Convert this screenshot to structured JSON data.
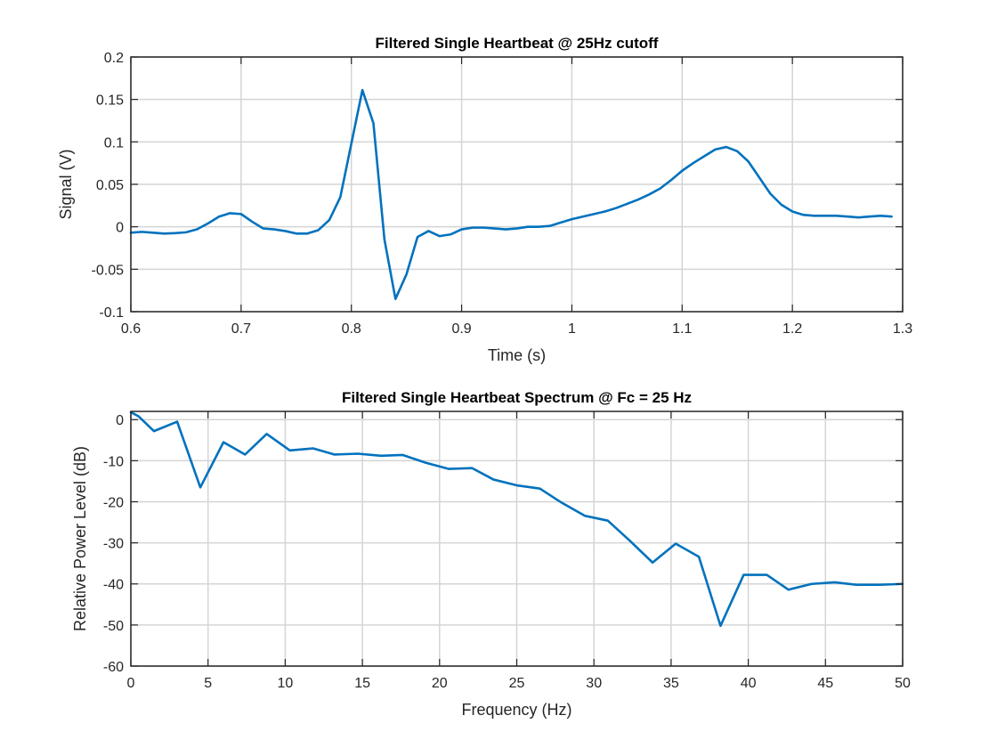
{
  "chart_data": [
    {
      "type": "line",
      "title": "Filtered Single Heartbeat @ 25Hz cutoff",
      "xlabel": "Time (s)",
      "ylabel": "Signal (V)",
      "xlim": [
        0.6,
        1.3
      ],
      "ylim": [
        -0.1,
        0.2
      ],
      "xticks": [
        0.6,
        0.7,
        0.8,
        0.9,
        1.0,
        1.1,
        1.2,
        1.3
      ],
      "xticklabels": [
        "0.6",
        "0.7",
        "0.8",
        "0.9",
        "1",
        "1.1",
        "1.2",
        "1.3"
      ],
      "yticks": [
        -0.1,
        -0.05,
        0,
        0.05,
        0.1,
        0.15,
        0.2
      ],
      "yticklabels": [
        "-0.1",
        "-0.05",
        "0",
        "0.05",
        "0.1",
        "0.15",
        "0.2"
      ],
      "grid": true,
      "color": "#0072BD",
      "series": [
        {
          "x": [
            0.6,
            0.61,
            0.62,
            0.63,
            0.64,
            0.65,
            0.66,
            0.67,
            0.68,
            0.69,
            0.7,
            0.71,
            0.72,
            0.73,
            0.74,
            0.75,
            0.76,
            0.77,
            0.78,
            0.79,
            0.8,
            0.81,
            0.82,
            0.83,
            0.84,
            0.85,
            0.86,
            0.87,
            0.88,
            0.89,
            0.9,
            0.91,
            0.92,
            0.93,
            0.94,
            0.95,
            0.96,
            0.97,
            0.98,
            0.99,
            1.0,
            1.01,
            1.02,
            1.03,
            1.04,
            1.05,
            1.06,
            1.07,
            1.08,
            1.09,
            1.1,
            1.11,
            1.12,
            1.13,
            1.14,
            1.15,
            1.16,
            1.17,
            1.18,
            1.19,
            1.2,
            1.21,
            1.22,
            1.23,
            1.24,
            1.25,
            1.26,
            1.27,
            1.28,
            1.29
          ],
          "y": [
            -0.007,
            -0.006,
            -0.007,
            -0.008,
            -0.0075,
            -0.0065,
            -0.003,
            0.004,
            0.012,
            0.016,
            0.015,
            0.006,
            -0.002,
            -0.003,
            -0.005,
            -0.008,
            -0.008,
            -0.004,
            0.008,
            0.035,
            0.098,
            0.161,
            0.122,
            -0.015,
            -0.085,
            -0.056,
            -0.012,
            -0.005,
            -0.011,
            -0.009,
            -0.003,
            -0.001,
            -0.001,
            -0.002,
            -0.003,
            -0.002,
            0.0,
            0.0,
            0.001,
            0.005,
            0.009,
            0.012,
            0.015,
            0.018,
            0.022,
            0.027,
            0.032,
            0.038,
            0.045,
            0.055,
            0.066,
            0.075,
            0.083,
            0.091,
            0.094,
            0.089,
            0.077,
            0.058,
            0.039,
            0.026,
            0.018,
            0.014,
            0.013,
            0.013,
            0.013,
            0.012,
            0.011,
            0.012,
            0.013,
            0.012
          ]
        }
      ]
    },
    {
      "type": "line",
      "title": "Filtered Single Heartbeat Spectrum @ Fc = 25 Hz",
      "xlabel": "Frequency (Hz)",
      "ylabel": "Relative Power Level (dB)",
      "xlim": [
        0,
        50
      ],
      "ylim": [
        -60,
        2
      ],
      "xticks": [
        0,
        5,
        10,
        15,
        20,
        25,
        30,
        35,
        40,
        45,
        50
      ],
      "xticklabels": [
        "0",
        "5",
        "10",
        "15",
        "20",
        "25",
        "30",
        "35",
        "40",
        "45",
        "50"
      ],
      "yticks": [
        -60,
        -50,
        -40,
        -30,
        -20,
        -10,
        0
      ],
      "yticklabels": [
        "-60",
        "-50",
        "-40",
        "-30",
        "-20",
        "-10",
        "0"
      ],
      "grid": true,
      "color": "#0072BD",
      "series": [
        {
          "x": [
            0,
            0.5,
            1.5,
            3.0,
            4.5,
            6.0,
            7.4,
            8.8,
            10.3,
            11.8,
            13.2,
            14.7,
            16.2,
            17.6,
            19.1,
            20.6,
            22.1,
            23.5,
            25.0,
            26.5,
            27.9,
            29.4,
            30.9,
            32.3,
            33.8,
            35.3,
            36.8,
            38.2,
            39.7,
            41.2,
            42.6,
            44.1,
            45.6,
            47.0,
            48.5,
            50.0
          ],
          "y": [
            1.8,
            0.8,
            -2.8,
            -0.5,
            -16.5,
            -5.5,
            -8.5,
            -3.5,
            -7.5,
            -7.0,
            -8.5,
            -8.3,
            -8.8,
            -8.6,
            -10.5,
            -12.0,
            -11.8,
            -14.6,
            -16.0,
            -16.8,
            -20.2,
            -23.4,
            -24.6,
            -29.4,
            -34.8,
            -30.2,
            -33.4,
            -50.2,
            -37.8,
            -37.8,
            -41.4,
            -40.0,
            -39.6,
            -40.2,
            -40.2,
            -40.0
          ]
        }
      ]
    }
  ]
}
